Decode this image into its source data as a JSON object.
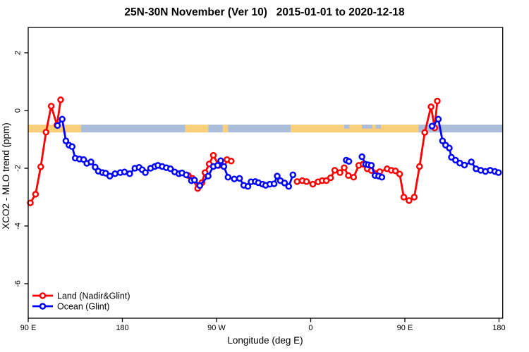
{
  "chart_data": {
    "type": "line",
    "title": "25N-30N November (Ver 10)   2015-01-01 to 2020-12-18",
    "xlabel": "Longitude (deg E)",
    "ylabel": "XCO2 - MLO trend (ppm)",
    "x_axis": {
      "note": "longitude unwrapped eastward from 90E (spans 450 deg, 90E-180 repeated)",
      "range": [
        90,
        543.5
      ],
      "ticks": [
        90,
        180,
        270,
        360,
        450,
        540
      ],
      "tick_labels": [
        "90 E",
        "180",
        "90 W",
        "0",
        "90 E",
        "180"
      ]
    },
    "y_axis": {
      "range": [
        -7.2,
        2.88
      ],
      "ticks": [
        2,
        0,
        -2,
        -4,
        -6
      ],
      "tick_labels": [
        "2",
        "0",
        "-2",
        "-4",
        "-6"
      ]
    },
    "land_ocean_band": {
      "description": "land/ocean surface strip for 25N-30N latitude band",
      "y_top": -0.49,
      "y_bottom": -0.76,
      "land_color": "#F9CF7B",
      "ocean_color": "#AABDDA",
      "segments": [
        {
          "from": 90,
          "to": 140.5,
          "surface": "land"
        },
        {
          "from": 140.5,
          "to": 240,
          "surface": "ocean"
        },
        {
          "from": 240,
          "to": 262,
          "surface": "land"
        },
        {
          "from": 262,
          "to": 276,
          "surface": "ocean"
        },
        {
          "from": 276,
          "to": 281,
          "surface": "land"
        },
        {
          "from": 281,
          "to": 341,
          "surface": "ocean"
        },
        {
          "from": 341,
          "to": 463,
          "surface": "land"
        },
        {
          "from": 463,
          "to": 543.5,
          "surface": "ocean"
        },
        {
          "from": 392,
          "to": 397,
          "surface": "ocean",
          "half": true
        },
        {
          "from": 409,
          "to": 419,
          "surface": "ocean",
          "half": true
        },
        {
          "from": 422,
          "to": 427,
          "surface": "ocean",
          "half": true
        }
      ]
    },
    "series": [
      {
        "name": "Land (Nadir&Glint)",
        "color": "#FF0000",
        "segments": [
          [
            [
              92,
              -3.2
            ],
            [
              97,
              -2.9
            ],
            [
              102,
              -1.95
            ],
            [
              107,
              -0.75
            ],
            [
              112,
              0.15
            ],
            [
              117.5,
              -0.5
            ],
            [
              121,
              0.37
            ]
          ],
          [
            [
              243,
              -2.25
            ],
            [
              247,
              -2.35
            ],
            [
              252,
              -2.7
            ],
            [
              256,
              -2.5
            ],
            [
              259,
              -2.15
            ],
            [
              263,
              -1.85
            ],
            [
              267,
              -1.55
            ],
            [
              272,
              -1.9
            ],
            [
              277,
              -1.78
            ],
            [
              280,
              -1.7
            ],
            [
              284,
              -1.75
            ]
          ],
          [
            [
              347,
              -2.46
            ],
            [
              352,
              -2.43
            ],
            [
              356,
              -2.46
            ],
            [
              362,
              -2.55
            ],
            [
              367,
              -2.47
            ],
            [
              371,
              -2.43
            ],
            [
              375,
              -2.43
            ],
            [
              379,
              -2.33
            ],
            [
              383,
              -2.07
            ],
            [
              388,
              -2.15
            ],
            [
              392,
              -1.98
            ],
            [
              396,
              -2.25
            ],
            [
              401,
              -2.31
            ],
            [
              406,
              -1.9
            ],
            [
              410,
              -1.86
            ],
            [
              414,
              -2.02
            ],
            [
              418,
              -2.08
            ],
            [
              426,
              -2.12
            ],
            [
              433,
              -2.02
            ],
            [
              437,
              -2.07
            ],
            [
              441,
              -2.09
            ],
            [
              445,
              -2.2
            ],
            [
              449,
              -3.0
            ],
            [
              454,
              -3.12
            ],
            [
              459,
              -3.0
            ],
            [
              464,
              -1.94
            ],
            [
              469,
              -0.76
            ],
            [
              475,
              0.13
            ],
            [
              478.5,
              -0.6
            ],
            [
              481,
              0.33
            ]
          ]
        ]
      },
      {
        "name": "Ocean (Glint)",
        "color": "#0000FF",
        "segments": [
          [
            [
              118,
              -0.52
            ],
            [
              122.5,
              -0.3
            ],
            [
              126,
              -1.05
            ],
            [
              129,
              -1.2
            ],
            [
              132,
              -1.25
            ],
            [
              135,
              -1.65
            ],
            [
              139,
              -1.68
            ],
            [
              143,
              -1.7
            ],
            [
              146,
              -1.83
            ],
            [
              150,
              -1.78
            ],
            [
              154,
              -1.96
            ],
            [
              157,
              -2.1
            ],
            [
              161,
              -2.15
            ],
            [
              164,
              -2.17
            ],
            [
              168,
              -2.27
            ],
            [
              173,
              -2.19
            ],
            [
              178,
              -2.15
            ],
            [
              182,
              -2.13
            ],
            [
              187,
              -2.19
            ],
            [
              192,
              -2.0
            ],
            [
              196,
              -1.97
            ],
            [
              199,
              -2.05
            ],
            [
              202,
              -2.15
            ],
            [
              207,
              -2.0
            ],
            [
              211,
              -1.94
            ],
            [
              214,
              -1.9
            ],
            [
              218,
              -1.94
            ],
            [
              222,
              -1.98
            ],
            [
              226,
              -2.02
            ],
            [
              230,
              -2.13
            ],
            [
              234,
              -2.19
            ],
            [
              237,
              -2.16
            ],
            [
              241,
              -2.23
            ],
            [
              246,
              -2.43
            ],
            [
              249,
              -2.41
            ],
            [
              254,
              -2.6
            ],
            [
              262,
              -2.27
            ],
            [
              267,
              -1.94
            ],
            [
              271,
              -1.9
            ],
            [
              274,
              -1.74
            ],
            [
              277,
              -1.94
            ],
            [
              281,
              -2.31
            ],
            [
              287,
              -2.37
            ],
            [
              292,
              -2.35
            ],
            [
              296,
              -2.59
            ],
            [
              300,
              -2.63
            ],
            [
              303,
              -2.47
            ],
            [
              307,
              -2.46
            ],
            [
              310,
              -2.5
            ],
            [
              314,
              -2.55
            ],
            [
              317,
              -2.59
            ],
            [
              321,
              -2.55
            ],
            [
              325,
              -2.54
            ],
            [
              328,
              -2.27
            ],
            [
              331,
              -2.43
            ],
            [
              335,
              -2.51
            ],
            [
              339,
              -2.63
            ],
            [
              343,
              -2.23
            ]
          ],
          [
            [
              394,
              -1.72
            ],
            [
              396.5,
              -1.76
            ]
          ],
          [
            [
              409,
              -1.6
            ],
            [
              412.5,
              -1.86
            ],
            [
              415,
              -1.88
            ],
            [
              418,
              -1.9
            ],
            [
              421.5,
              -2.25
            ],
            [
              425,
              -2.27
            ],
            [
              428,
              -2.31
            ]
          ],
          [
            [
              476,
              -0.54
            ],
            [
              482,
              -0.3
            ],
            [
              486,
              -1.05
            ],
            [
              489,
              -1.2
            ],
            [
              492.5,
              -1.3
            ],
            [
              494.5,
              -1.62
            ],
            [
              498.5,
              -1.72
            ],
            [
              502.5,
              -1.82
            ],
            [
              507,
              -1.89
            ],
            [
              513.5,
              -1.78
            ],
            [
              518,
              -2.02
            ],
            [
              522.5,
              -2.07
            ],
            [
              527,
              -2.11
            ],
            [
              531.5,
              -2.07
            ],
            [
              536,
              -2.11
            ],
            [
              539.5,
              -2.15
            ]
          ]
        ]
      }
    ],
    "legend": {
      "position": "bottom-left-inside",
      "entries": [
        {
          "label": "Land (Nadir&Glint)",
          "color": "#FF0000"
        },
        {
          "label": "Ocean (Glint)",
          "color": "#0000FF"
        }
      ]
    },
    "colors": {
      "background": "#FFFFFF",
      "axis": "#000000",
      "land_series": "#FF0000",
      "ocean_series": "#0000FF",
      "band_land": "#F9CF7B",
      "band_ocean": "#AABDDA"
    }
  }
}
